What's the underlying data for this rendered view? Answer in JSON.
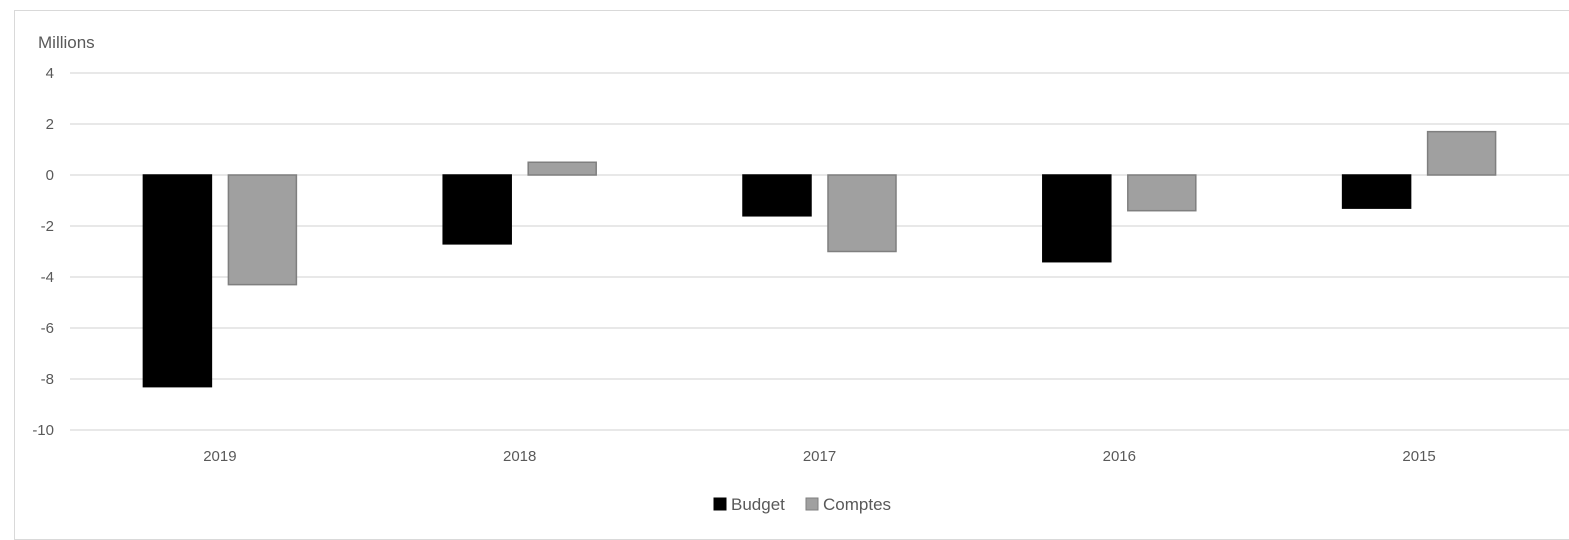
{
  "chart_data": {
    "type": "bar",
    "title": "",
    "unit_label": "Millions",
    "xlabel": "",
    "ylabel": "",
    "categories": [
      "2019",
      "2018",
      "2017",
      "2016",
      "2015"
    ],
    "series": [
      {
        "name": "Budget",
        "values": [
          -8.3,
          -2.7,
          -1.6,
          -3.4,
          -1.3
        ],
        "color": "#000000"
      },
      {
        "name": "Comptes",
        "values": [
          -4.3,
          0.5,
          -3.0,
          -1.4,
          1.7
        ],
        "color": "#a0a0a0"
      }
    ],
    "ylim": [
      -10,
      4
    ],
    "yticks": [
      "4",
      "2",
      "0",
      "-2",
      "-4",
      "-6",
      "-8",
      "-10"
    ],
    "grid": true,
    "legend_position": "bottom-center",
    "colors": {
      "gridline": "#d9d9d9",
      "bar_outline": "#7f7f7f"
    }
  }
}
